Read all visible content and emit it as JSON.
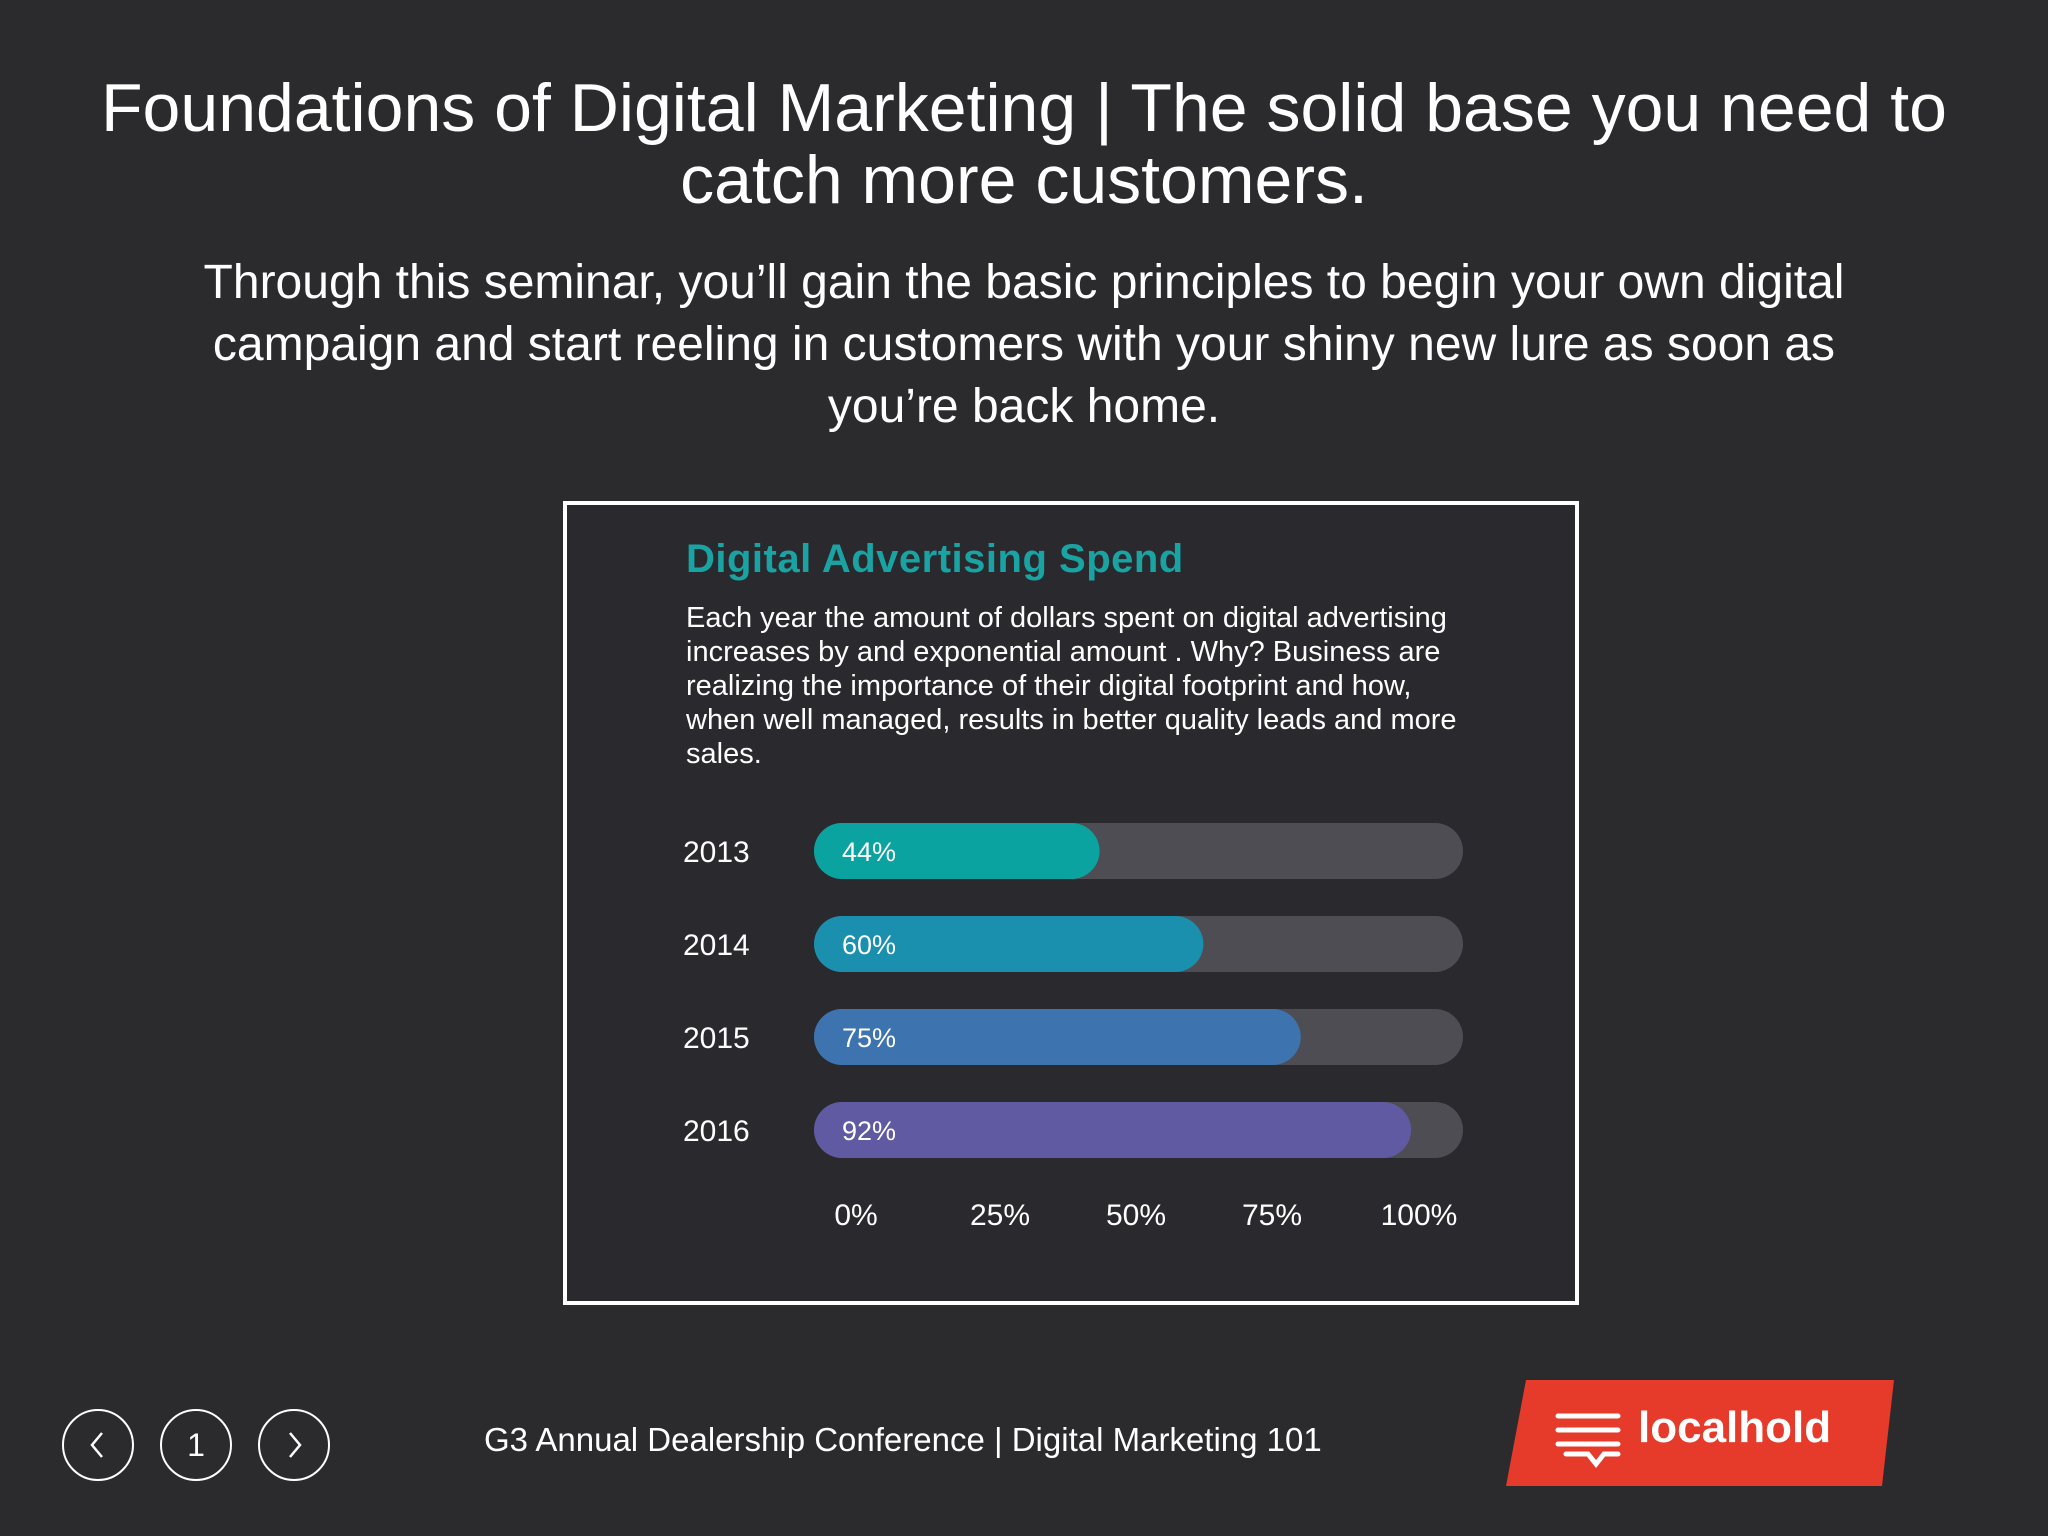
{
  "slide": {
    "headline": "Foundations of Digital Marketing | The solid base you need to catch more customers.",
    "subhead": "Through this seminar, you’ll gain the basic principles to begin your own digital campaign and start reeling in customers with your shiny new lure as soon as you’re back home."
  },
  "card": {
    "title": "Digital Advertising Spend",
    "description": "Each year the amount of dollars spent on digital advertising increases by and exponential amount . Why? Business are realizing the importance of their digital footprint and how, when well managed, results in better quality leads and more sales."
  },
  "chart_data": {
    "type": "bar",
    "orientation": "horizontal",
    "categories": [
      "2013",
      "2014",
      "2015",
      "2016"
    ],
    "values": [
      44,
      60,
      75,
      92
    ],
    "value_labels": [
      "44%",
      "60%",
      "75%",
      "92%"
    ],
    "bar_colors": [
      "#0aa39f",
      "#1a8fae",
      "#3d73ae",
      "#5f5aa2"
    ],
    "track_color": "#4e4d53",
    "xlim": [
      0,
      100
    ],
    "x_tick_labels": [
      "0%",
      "25%",
      "50%",
      "75%",
      "100%"
    ],
    "grid": false
  },
  "footer": {
    "nav_prev_icon": "chevron-left-icon",
    "page_number": "1",
    "nav_next_icon": "chevron-right-icon",
    "text": "G3 Annual Dealership Conference | Digital Marketing 101",
    "logo_text": "localhold",
    "logo_color": "#e63a2a"
  }
}
